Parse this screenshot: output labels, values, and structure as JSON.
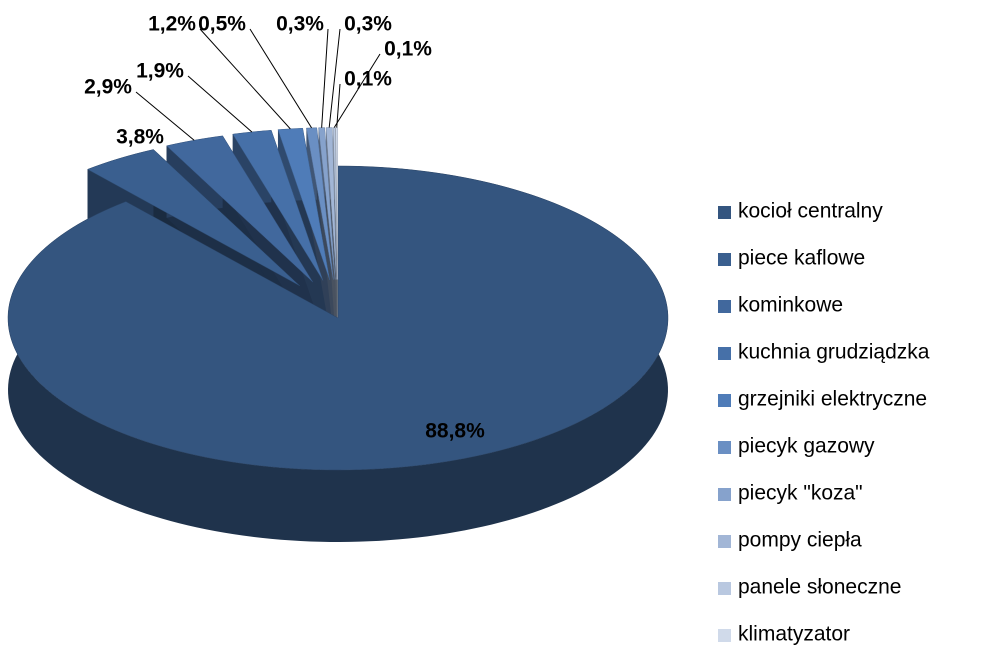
{
  "chart_data": {
    "type": "pie",
    "categories": [
      "kocioł centralny",
      "piece kaflowe",
      "kominkowe",
      "kuchnia grudziądzka",
      "grzejniki elektryczne",
      "piecyk gazowy",
      "piecyk \"koza\"",
      "pompy ciepła",
      "panele słoneczne",
      "klimatyzator"
    ],
    "values": [
      88.8,
      3.8,
      2.9,
      1.9,
      1.2,
      0.5,
      0.3,
      0.3,
      0.1,
      0.1
    ],
    "value_labels": [
      "88,8%",
      "3,8%",
      "2,9%",
      "1,9%",
      "1,2%",
      "0,5%",
      "0,3%",
      "0,3%",
      "0,1%",
      "0,1%"
    ],
    "colors": [
      "#34557f",
      "#3a5f8f",
      "#41689d",
      "#4670a8",
      "#4f7cb8",
      "#6a8fc3",
      "#86a2cc",
      "#a2b6d6",
      "#b9c8e0",
      "#d0daea"
    ],
    "legend": "right"
  }
}
